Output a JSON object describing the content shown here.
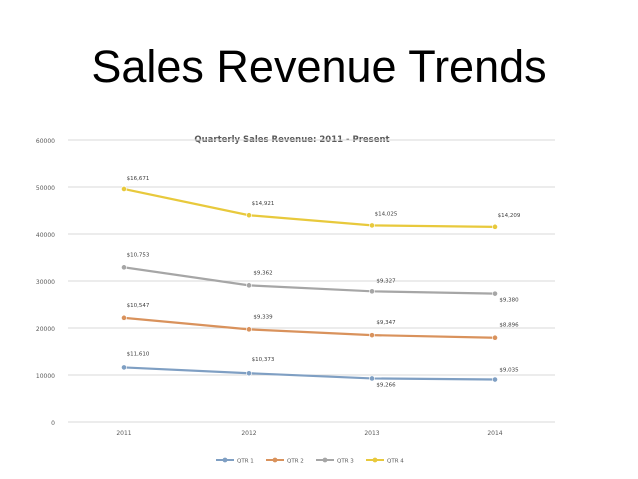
{
  "slide": {
    "title": "Sales Revenue Trends"
  },
  "chart_data": {
    "type": "line",
    "title": "Quarterly Sales Revenue: 2011 - Present",
    "xlabel": "",
    "ylabel": "",
    "categories": [
      "2011",
      "2012",
      "2013",
      "2014"
    ],
    "ylim": [
      0,
      60000
    ],
    "yticks": [
      "0",
      "10000",
      "20000",
      "30000",
      "40000",
      "50000",
      "60000"
    ],
    "grid": true,
    "legend_position": "bottom",
    "series": [
      {
        "name": "QTR 1",
        "color": "#7f9fc3",
        "values": [
          11610,
          10373,
          9266,
          9035
        ],
        "labels": [
          "$11,610",
          "$10,373",
          "$9,266",
          "$9,035"
        ]
      },
      {
        "name": "QTR 2",
        "color": "#d9925c",
        "values": [
          22157,
          19712,
          18479,
          17931
        ],
        "labels": [
          "$10,547",
          "$9,339",
          "$9,347",
          "$8,896"
        ]
      },
      {
        "name": "QTR 3",
        "color": "#a6a6a6",
        "values": [
          32910,
          29074,
          27806,
          27311
        ],
        "labels": [
          "$10,753",
          "$9,362",
          "$9,327",
          "$9,380"
        ]
      },
      {
        "name": "QTR 4",
        "color": "#e8c93c",
        "values": [
          49581,
          43995,
          41831,
          41520
        ],
        "labels": [
          "$16,671",
          "$14,921",
          "$14,025",
          "$14,209"
        ]
      }
    ]
  }
}
